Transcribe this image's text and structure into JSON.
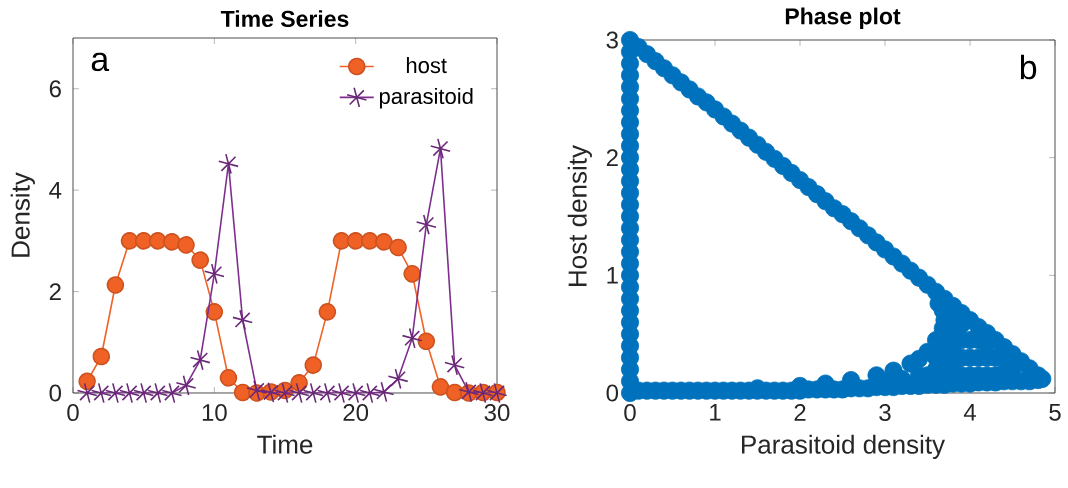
{
  "chart_data": [
    {
      "type": "line",
      "title": "Time Series",
      "xlabel": "Time",
      "ylabel": "Density",
      "annotations": [
        "a"
      ],
      "x": [
        1,
        2,
        3,
        4,
        5,
        6,
        7,
        8,
        9,
        10,
        11,
        12,
        13,
        14,
        15,
        16,
        17,
        18,
        19,
        20,
        21,
        22,
        23,
        24,
        25,
        26,
        27,
        28,
        29,
        30
      ],
      "series": [
        {
          "name": "host",
          "color": "#f06126",
          "marker": "circle",
          "values": [
            0.23,
            0.72,
            2.13,
            3.0,
            3.0,
            3.0,
            2.98,
            2.92,
            2.62,
            1.6,
            0.3,
            0.01,
            0,
            0.02,
            0.05,
            0.2,
            0.55,
            1.6,
            3.0,
            3.0,
            3.0,
            2.98,
            2.87,
            2.35,
            1.02,
            0.12,
            0.01,
            0,
            0.01,
            0.01
          ]
        },
        {
          "name": "parasitoid",
          "color": "#7e2f8e",
          "marker": "cross",
          "values": [
            0,
            0,
            0,
            0,
            0,
            0,
            0,
            0.15,
            0.65,
            2.35,
            4.52,
            1.44,
            0.05,
            0.01,
            0,
            0,
            0,
            0,
            0,
            0,
            0,
            0.02,
            0.28,
            1.08,
            3.32,
            4.82,
            0.55,
            0.02,
            0,
            0
          ]
        }
      ],
      "xlim": [
        0,
        30
      ],
      "xticks": [
        0,
        10,
        20,
        30
      ],
      "ylim": [
        0,
        7
      ],
      "yticks": [
        0,
        2,
        4,
        6
      ],
      "legend": "top right",
      "line_style": "solid"
    },
    {
      "type": "scatter",
      "title": "Phase plot",
      "xlabel": "Parasitoid density",
      "ylabel": "Host density",
      "annotations": [
        "b"
      ],
      "marker": "circle",
      "series": [
        {
          "color": "#0072bd",
          "x": [
            0,
            0,
            0,
            0,
            0,
            0,
            0,
            0,
            0,
            0,
            0,
            0,
            0,
            0,
            0,
            0,
            0,
            0,
            0,
            0,
            0,
            0,
            0,
            0,
            0,
            0,
            0,
            0,
            0,
            0,
            0,
            0.1,
            0.2,
            0.3,
            0.4,
            0.5,
            0.6,
            0.7,
            0.8,
            0.9,
            1.0,
            1.1,
            1.2,
            1.3,
            1.4,
            1.5,
            1.6,
            1.7,
            1.8,
            1.9,
            2.0,
            2.1,
            2.2,
            2.3,
            2.4,
            2.5,
            2.6,
            2.7,
            2.8,
            2.9,
            3.0,
            3.1,
            3.2,
            3.3,
            3.4,
            3.5,
            3.6,
            3.7,
            3.8,
            3.9,
            4.0,
            4.1,
            4.2,
            4.3,
            4.4,
            4.5,
            4.6,
            4.7,
            4.8,
            4.85,
            0.1,
            0.2,
            0.3,
            0.4,
            0.5,
            0.6,
            0.7,
            0.8,
            0.9,
            1.0,
            1.1,
            1.2,
            1.3,
            1.4,
            1.5,
            1.6,
            1.7,
            1.8,
            1.9,
            2.0,
            2.1,
            2.2,
            2.3,
            2.4,
            2.5,
            2.6,
            2.7,
            2.8,
            2.9,
            3.0,
            3.1,
            3.2,
            3.3,
            3.4,
            3.5,
            3.6,
            3.7,
            3.8,
            3.9,
            4.0,
            4.1,
            4.2,
            4.3,
            4.4,
            4.5,
            4.6,
            4.7,
            4.8,
            1.5,
            2.0,
            2.3,
            2.6,
            2.9,
            3.1,
            3.3,
            3.4,
            3.5,
            3.68,
            3.7,
            3.68,
            3.63,
            3.8,
            3.8,
            3.8,
            3.8,
            3.9,
            3.9,
            3.9,
            3.9,
            4.0,
            4.0,
            4.0,
            4.1,
            4.1,
            4.1,
            4.2,
            4.2,
            4.2,
            4.3,
            4.3,
            4.4,
            4.4,
            4.5,
            3.7,
            3.7,
            3.6,
            3.5,
            3.0,
            3.2,
            3.4,
            3.6,
            3.6,
            3.7
          ],
          "values": [
            0,
            0.1,
            0.2,
            0.3,
            0.4,
            0.5,
            0.6,
            0.7,
            0.8,
            0.9,
            1.0,
            1.1,
            1.2,
            1.3,
            1.4,
            1.5,
            1.6,
            1.7,
            1.8,
            1.9,
            2.0,
            2.1,
            2.2,
            2.3,
            2.4,
            2.5,
            2.6,
            2.7,
            2.8,
            2.9,
            3.0,
            2.94,
            2.88,
            2.82,
            2.76,
            2.7,
            2.64,
            2.58,
            2.52,
            2.47,
            2.41,
            2.35,
            2.29,
            2.23,
            2.17,
            2.11,
            2.05,
            1.99,
            1.93,
            1.87,
            1.81,
            1.75,
            1.69,
            1.63,
            1.57,
            1.52,
            1.46,
            1.4,
            1.34,
            1.28,
            1.22,
            1.16,
            1.1,
            1.04,
            0.98,
            0.92,
            0.86,
            0.8,
            0.74,
            0.68,
            0.62,
            0.56,
            0.51,
            0.45,
            0.39,
            0.33,
            0.27,
            0.21,
            0.15,
            0.12,
            0.02,
            0.02,
            0.02,
            0.02,
            0.02,
            0.02,
            0.02,
            0.02,
            0.02,
            0.02,
            0.02,
            0.02,
            0.02,
            0.02,
            0.02,
            0.02,
            0.02,
            0.02,
            0.02,
            0.02,
            0.03,
            0.03,
            0.03,
            0.03,
            0.03,
            0.04,
            0.04,
            0.04,
            0.05,
            0.05,
            0.05,
            0.06,
            0.06,
            0.06,
            0.07,
            0.07,
            0.07,
            0.08,
            0.08,
            0.08,
            0.09,
            0.09,
            0.09,
            0.1,
            0.1,
            0.1,
            0.1,
            0.11,
            0.04,
            0.06,
            0.08,
            0.11,
            0.15,
            0.19,
            0.25,
            0.29,
            0.35,
            0.55,
            0.62,
            0.7,
            0.76,
            0.2,
            0.35,
            0.5,
            0.62,
            0.15,
            0.3,
            0.45,
            0.58,
            0.15,
            0.3,
            0.45,
            0.15,
            0.3,
            0.45,
            0.15,
            0.3,
            0.42,
            0.15,
            0.3,
            0.17,
            0.3,
            0.2,
            0.2,
            0.4,
            0.2,
            0.15,
            0.1,
            0.12,
            0.15,
            0.3,
            0.45,
            0.3
          ]
        }
      ],
      "xlim": [
        0,
        5
      ],
      "xticks": [
        0,
        1,
        2,
        3,
        4,
        5
      ],
      "ylim": [
        0,
        3
      ],
      "yticks": [
        0,
        1,
        2,
        3
      ]
    }
  ]
}
